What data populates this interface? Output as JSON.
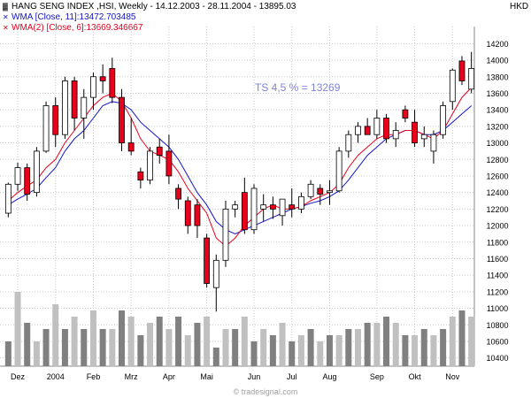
{
  "header": {
    "line1": "HANG SENG INDEX ,HSI, Weekly - 14.12.2003 - 28.11.2004 - 13895.03",
    "line2": "WMA [Close, 11]:13472.703485",
    "line3": "WMA(2) [Close, 6]:13669.346667",
    "currency": "HKD",
    "watermark": "© tradesignal.com"
  },
  "colors": {
    "up": "#ffffff",
    "down": "#e8001c",
    "wick": "#000000",
    "wma11": "#1414c8",
    "wma6": "#e8001c",
    "grid": "#c8c8c8",
    "vol_dark": "#808080",
    "vol_light": "#c0c0c0",
    "annotation": "#7f84d6"
  },
  "chart_data": {
    "type": "candlestick",
    "annotation": "TS 4,5 % = 13269",
    "y_axis": {
      "min": 10300,
      "max": 14300,
      "ticks": [
        10400,
        10600,
        10800,
        11000,
        11200,
        11400,
        11600,
        11800,
        12000,
        12200,
        12400,
        12600,
        12800,
        13000,
        13200,
        13400,
        13600,
        13800,
        14000,
        14200
      ]
    },
    "x_labels": [
      {
        "label": "Dez",
        "week": 1
      },
      {
        "label": "2004",
        "week": 5
      },
      {
        "label": "Feb",
        "week": 9
      },
      {
        "label": "Mrz",
        "week": 13
      },
      {
        "label": "Apr",
        "week": 17
      },
      {
        "label": "Mai",
        "week": 21
      },
      {
        "label": "Jun",
        "week": 26
      },
      {
        "label": "Jul",
        "week": 30
      },
      {
        "label": "Aug",
        "week": 34
      },
      {
        "label": "Sep",
        "week": 39
      },
      {
        "label": "Okt",
        "week": 43
      },
      {
        "label": "Nov",
        "week": 47
      }
    ],
    "candles": [
      [
        12150,
        12520,
        12100,
        12500
      ],
      [
        12500,
        12760,
        12420,
        12700
      ],
      [
        12700,
        12750,
        12300,
        12380
      ],
      [
        12400,
        12950,
        12350,
        12900
      ],
      [
        12900,
        13500,
        12880,
        13450
      ],
      [
        13450,
        13550,
        12950,
        13100
      ],
      [
        13100,
        13800,
        13050,
        13750
      ],
      [
        13750,
        13800,
        13150,
        13300
      ],
      [
        13300,
        13650,
        13050,
        13550
      ],
      [
        13550,
        13850,
        13400,
        13800
      ],
      [
        13800,
        13950,
        13600,
        13750
      ],
      [
        13900,
        14030,
        13480,
        13550
      ],
      [
        13550,
        13650,
        12900,
        13000
      ],
      [
        13000,
        13300,
        12850,
        12900
      ],
      [
        12650,
        12700,
        12450,
        12550
      ],
      [
        12550,
        12950,
        12500,
        12900
      ],
      [
        12950,
        13050,
        12750,
        12850
      ],
      [
        12900,
        13100,
        12500,
        12600
      ],
      [
        12450,
        12500,
        12200,
        12320
      ],
      [
        12300,
        12350,
        11900,
        12000
      ],
      [
        12250,
        12320,
        11850,
        12000
      ],
      [
        11850,
        11900,
        11250,
        11300
      ],
      [
        11250,
        11650,
        10960,
        11580
      ],
      [
        11580,
        12300,
        11500,
        12200
      ],
      [
        12200,
        12300,
        12100,
        12250
      ],
      [
        12400,
        12580,
        11900,
        11950
      ],
      [
        11950,
        12500,
        11900,
        12450
      ],
      [
        12200,
        12380,
        12050,
        12250
      ],
      [
        12250,
        12350,
        12080,
        12200
      ],
      [
        12120,
        12320,
        12000,
        12320
      ],
      [
        12250,
        12450,
        12100,
        12200
      ],
      [
        12200,
        12400,
        12150,
        12350
      ],
      [
        12350,
        12550,
        12320,
        12500
      ],
      [
        12450,
        12500,
        12250,
        12380
      ],
      [
        12400,
        12550,
        12250,
        12420
      ],
      [
        12420,
        12950,
        12400,
        12900
      ],
      [
        12900,
        13150,
        12820,
        13100
      ],
      [
        13100,
        13250,
        13000,
        13200
      ],
      [
        13200,
        13300,
        13100,
        13100
      ],
      [
        13100,
        13400,
        13050,
        13300
      ],
      [
        13300,
        13350,
        13000,
        13050
      ],
      [
        13050,
        13250,
        12950,
        13150
      ],
      [
        13400,
        13450,
        13250,
        13300
      ],
      [
        13250,
        13400,
        12950,
        13000
      ],
      [
        13050,
        13200,
        12950,
        13100
      ],
      [
        12900,
        13150,
        12750,
        13100
      ],
      [
        13100,
        13500,
        13050,
        13450
      ],
      [
        13500,
        13900,
        13400,
        13880
      ],
      [
        13990,
        14050,
        13700,
        13750
      ],
      [
        13650,
        14100,
        13600,
        13900
      ]
    ],
    "wma11": [
      12250,
      12320,
      12380,
      12450,
      12580,
      12700,
      12900,
      13050,
      13150,
      13300,
      13450,
      13500,
      13480,
      13400,
      13250,
      13150,
      13050,
      12950,
      12800,
      12600,
      12400,
      12250,
      12050,
      11950,
      11900,
      11950,
      12000,
      12050,
      12100,
      12150,
      12200,
      12230,
      12270,
      12300,
      12350,
      12420,
      12550,
      12700,
      12850,
      12950,
      13050,
      13100,
      13150,
      13150,
      13100,
      13100,
      13150,
      13250,
      13350,
      13450
    ],
    "wma6": [
      12300,
      12400,
      12480,
      12550,
      12700,
      12800,
      13000,
      13150,
      13300,
      13450,
      13550,
      13600,
      13500,
      13300,
      13050,
      12900,
      12850,
      12800,
      12650,
      12450,
      12300,
      12150,
      11850,
      11750,
      11850,
      12000,
      12100,
      12200,
      12250,
      12200,
      12200,
      12230,
      12300,
      12350,
      12400,
      12500,
      12700,
      12850,
      12950,
      13050,
      13100,
      13100,
      13150,
      13150,
      13100,
      13050,
      13150,
      13350,
      13550,
      13670
    ],
    "volume": [
      4,
      12,
      7,
      4,
      6,
      10,
      6,
      8,
      6,
      9,
      6,
      6,
      9,
      8,
      5,
      7,
      8,
      6,
      8,
      5,
      7,
      8,
      3,
      6,
      6,
      8,
      4,
      6,
      5,
      7,
      4,
      5,
      6,
      4,
      5,
      5,
      6,
      6,
      7,
      7,
      8,
      7,
      5,
      5,
      6,
      5,
      6,
      8,
      9,
      8
    ]
  }
}
